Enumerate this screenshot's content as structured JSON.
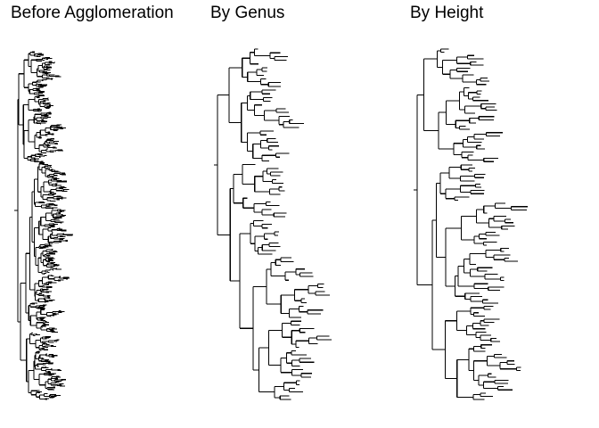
{
  "panels": [
    {
      "id": "before",
      "title": "Before Agglomeration"
    },
    {
      "id": "genus",
      "title": "By Genus"
    },
    {
      "id": "height",
      "title": "By Height"
    }
  ],
  "colors": {
    "line": "#000000",
    "background": "#ffffff"
  }
}
